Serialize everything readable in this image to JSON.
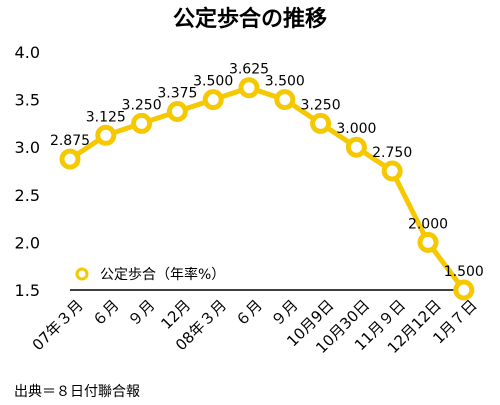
{
  "chart_data": {
    "type": "line",
    "title": "公定歩合の推移",
    "categories": [
      "07年３月",
      "６月",
      "９月",
      "12月",
      "08年３月",
      "６月",
      "９月",
      "10月9日",
      "10月30日",
      "11月９日",
      "12月12日",
      "1月７日"
    ],
    "series": [
      {
        "name": "公定歩合（年率%）",
        "values": [
          2.875,
          3.125,
          3.25,
          3.375,
          3.5,
          3.625,
          3.5,
          3.25,
          3.0,
          2.75,
          2.0,
          1.5
        ],
        "labels": [
          "2.875",
          "3.125",
          "3.250",
          "3.375",
          "3.500",
          "3.625",
          "3.500",
          "3.250",
          "3.000",
          "2.750",
          "2.000",
          "1.500"
        ],
        "color": "#F5C800"
      }
    ],
    "y_ticks": [
      "4.0",
      "3.5",
      "3.0",
      "2.5",
      "2.0",
      "1.5"
    ],
    "ylim": [
      1.5,
      4.0
    ],
    "xlabel": "",
    "ylabel": "",
    "grid": false,
    "legend": "bottom-left",
    "source": "出典＝８日付聯合報"
  }
}
